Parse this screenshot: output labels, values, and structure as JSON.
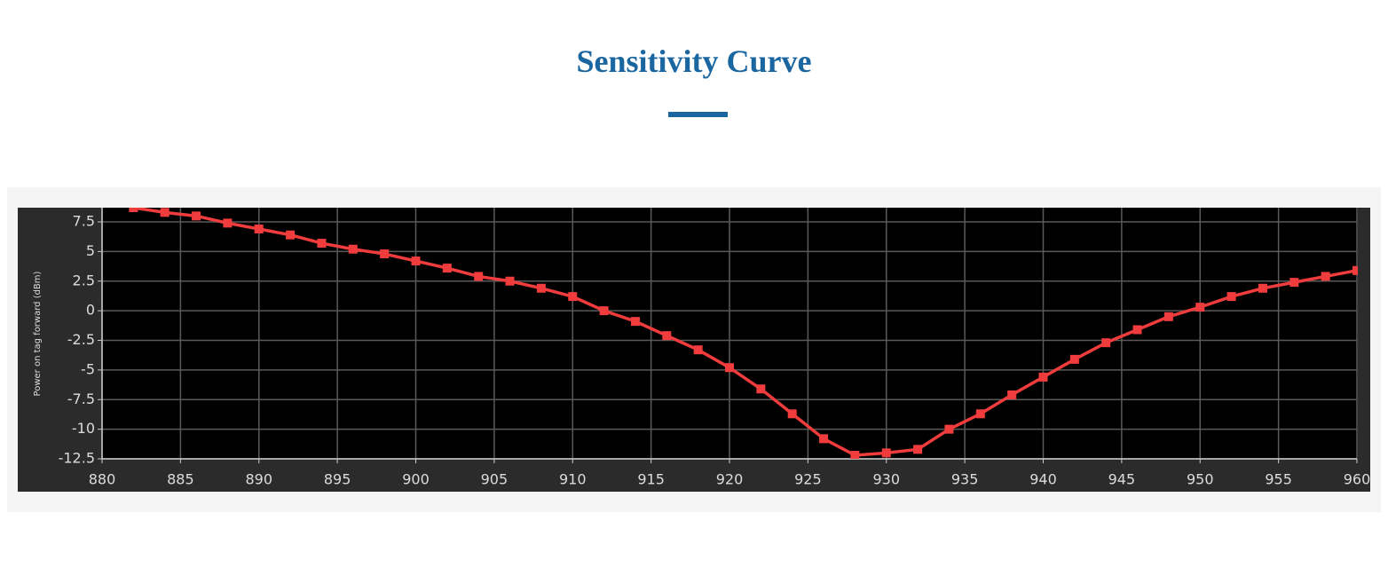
{
  "page_title": "Sensitivity Curve",
  "chart_data": {
    "type": "line",
    "y_label": "Power on tag forward (dBm)",
    "x": [
      882,
      884,
      886,
      888,
      890,
      892,
      894,
      896,
      898,
      900,
      902,
      904,
      906,
      908,
      910,
      912,
      914,
      916,
      918,
      920,
      922,
      924,
      926,
      928,
      930,
      932,
      934,
      936,
      938,
      940,
      942,
      944,
      946,
      948,
      950,
      952,
      954,
      956,
      958,
      960
    ],
    "series": [
      {
        "name": "Power on tag forward",
        "color": "#f03c3c",
        "values": [
          8.7,
          8.3,
          8.0,
          7.4,
          6.9,
          6.4,
          5.7,
          5.2,
          4.8,
          4.2,
          3.6,
          2.9,
          2.5,
          1.9,
          1.2,
          0.0,
          -0.9,
          -2.1,
          -3.3,
          -4.8,
          -6.6,
          -8.7,
          -10.8,
          -12.2,
          -12.0,
          -11.7,
          -10.0,
          -8.7,
          -7.1,
          -5.6,
          -4.1,
          -2.7,
          -1.6,
          -0.5,
          0.3,
          1.2,
          1.9,
          2.4,
          2.9,
          3.4
        ]
      }
    ],
    "xlim": [
      880,
      960
    ],
    "xticks": [
      880,
      885,
      890,
      895,
      900,
      905,
      910,
      915,
      920,
      925,
      930,
      935,
      940,
      945,
      950,
      955,
      960
    ],
    "ylim": [
      -12.5,
      8.7
    ],
    "yticks": [
      7.5,
      5,
      2.5,
      0,
      -2.5,
      -5,
      -7.5,
      -10,
      -12.5
    ],
    "grid": true
  }
}
